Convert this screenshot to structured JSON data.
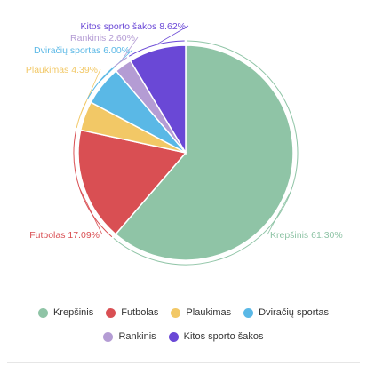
{
  "chart_data": {
    "type": "pie",
    "series": [
      {
        "name": "Krepšinis",
        "value": 61.3,
        "label": "Krepšinis 61.30%",
        "color": "#8fc4a6"
      },
      {
        "name": "Futbolas",
        "value": 17.09,
        "label": "Futbolas 17.09%",
        "color": "#d94f53"
      },
      {
        "name": "Plaukimas",
        "value": 4.39,
        "label": "Plaukimas 4.39%",
        "color": "#f2c866"
      },
      {
        "name": "Dviračių sportas",
        "value": 6.0,
        "label": "Dviračių sportas 6.00%",
        "color": "#5ab8e6"
      },
      {
        "name": "Rankinis",
        "value": 2.6,
        "label": "Rankinis 2.60%",
        "color": "#b49cd4"
      },
      {
        "name": "Kitos sporto šakos",
        "value": 8.62,
        "label": "Kitos sporto šakos 8.62%",
        "color": "#6a48d6"
      }
    ],
    "legend": {
      "placement": "bottom",
      "rows": [
        [
          "Krepšinis",
          "Futbolas",
          "Plaukimas",
          "Dviračių sportas"
        ],
        [
          "Rankinis",
          "Kitos sporto šakos"
        ]
      ]
    }
  }
}
